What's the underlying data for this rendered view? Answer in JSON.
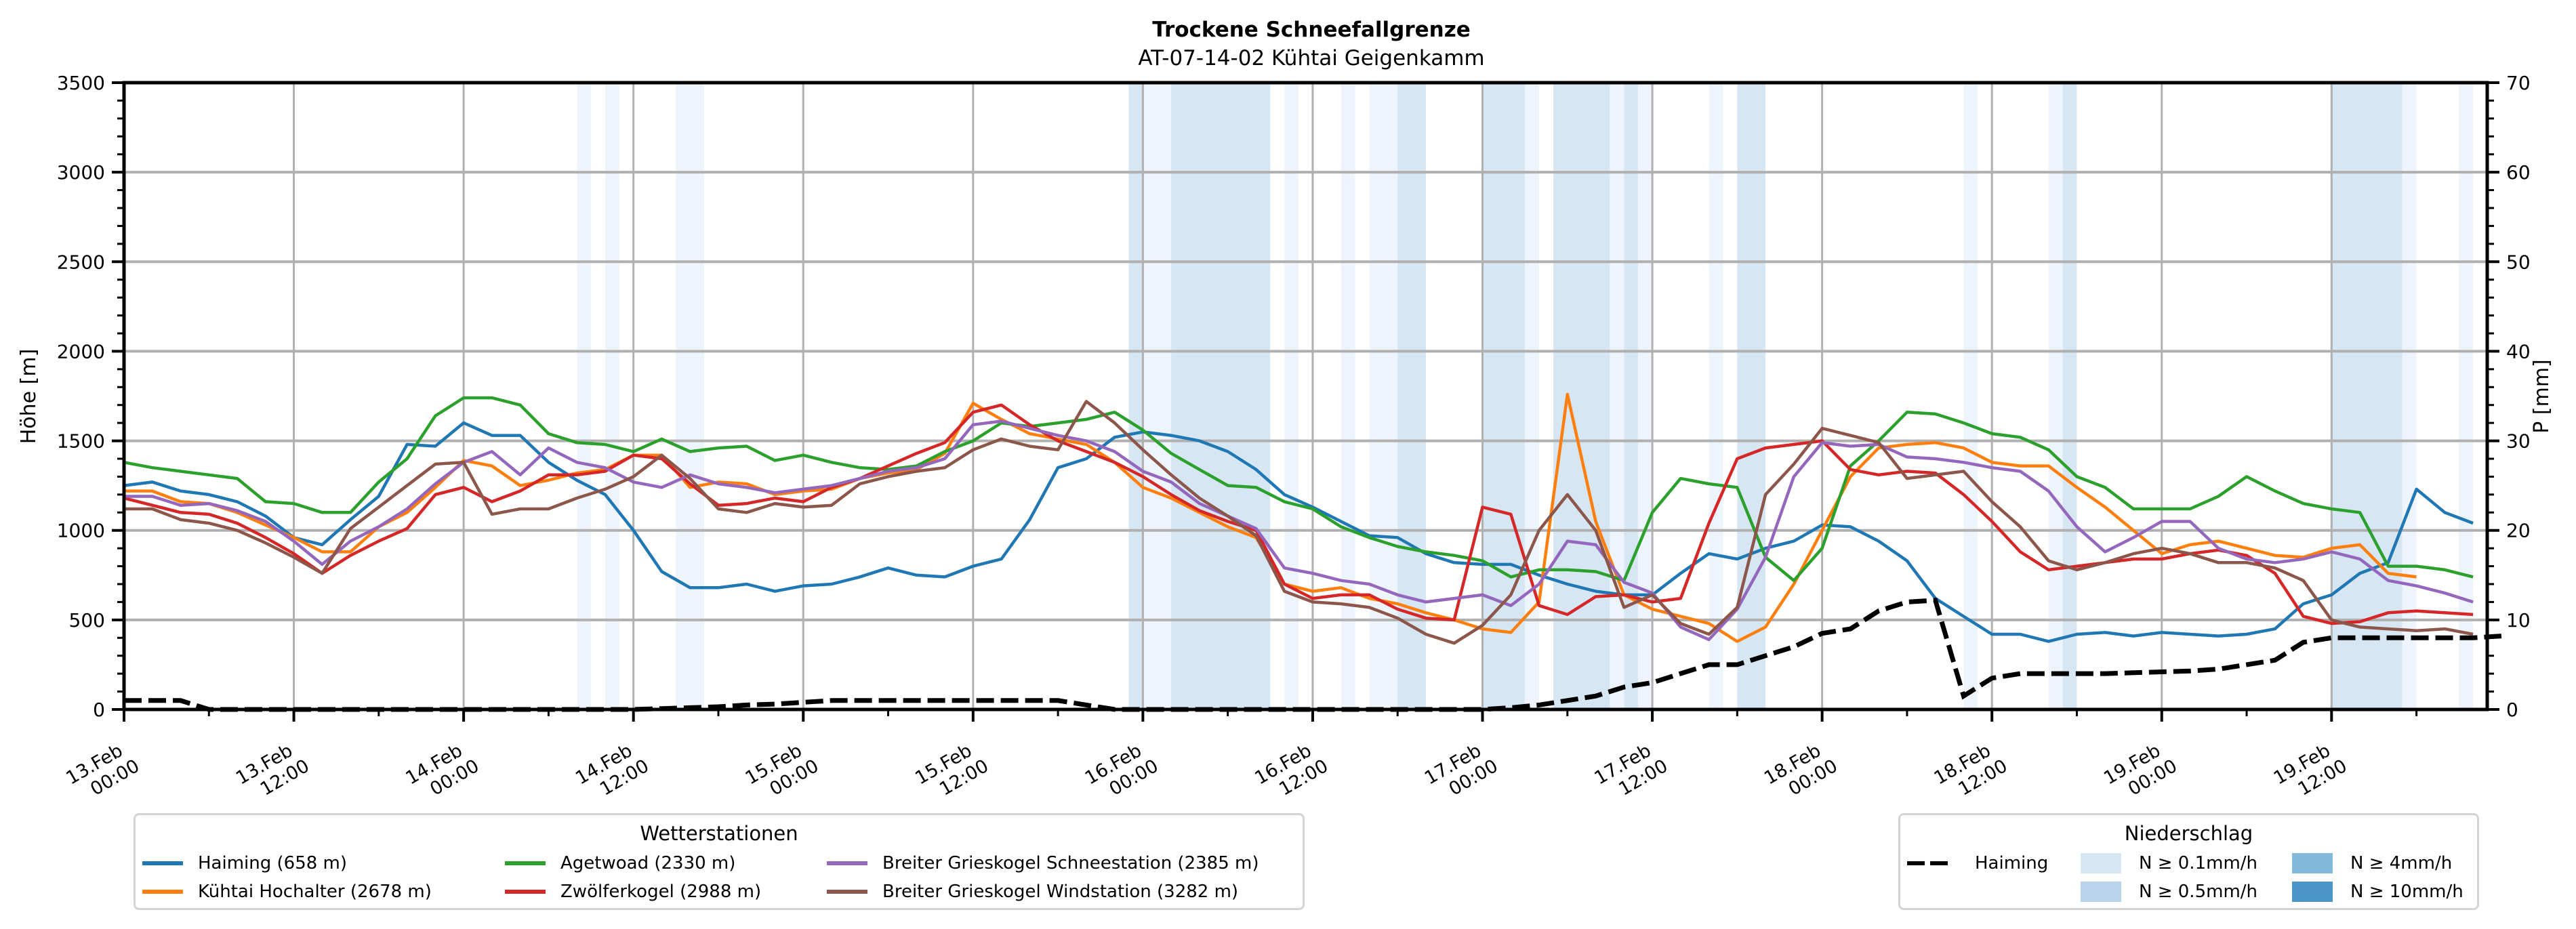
{
  "chart_data": {
    "type": "line",
    "title": "Trockene Schneefallgrenze",
    "subtitle": "AT-07-14-02 Kühtai Geigenkamm",
    "ylabel": "Höhe [m]",
    "ylabel_right": "P [mm]",
    "ylim": [
      0,
      3500
    ],
    "ylim_right": [
      0,
      70
    ],
    "yticks": [
      "0",
      "500",
      "1000",
      "1500",
      "2000",
      "2500",
      "3000",
      "3500"
    ],
    "yticks_right": [
      "0",
      "10",
      "20",
      "30",
      "40",
      "50",
      "60",
      "70"
    ],
    "x_unit": "hours since 13.Feb 00:00",
    "xlim": [
      0,
      167
    ],
    "xticks": [
      {
        "h": 0,
        "line1": "13.Feb",
        "line2": "00:00"
      },
      {
        "h": 12,
        "line1": "13.Feb",
        "line2": "12:00"
      },
      {
        "h": 24,
        "line1": "14.Feb",
        "line2": "00:00"
      },
      {
        "h": 36,
        "line1": "14.Feb",
        "line2": "12:00"
      },
      {
        "h": 48,
        "line1": "15.Feb",
        "line2": "00:00"
      },
      {
        "h": 60,
        "line1": "15.Feb",
        "line2": "12:00"
      },
      {
        "h": 72,
        "line1": "16.Feb",
        "line2": "00:00"
      },
      {
        "h": 84,
        "line1": "16.Feb",
        "line2": "12:00"
      },
      {
        "h": 96,
        "line1": "17.Feb",
        "line2": "00:00"
      },
      {
        "h": 108,
        "line1": "17.Feb",
        "line2": "12:00"
      },
      {
        "h": 120,
        "line1": "18.Feb",
        "line2": "00:00"
      },
      {
        "h": 132,
        "line1": "18.Feb",
        "line2": "12:00"
      },
      {
        "h": 144,
        "line1": "19.Feb",
        "line2": "00:00"
      },
      {
        "h": 156,
        "line1": "19.Feb",
        "line2": "12:00"
      }
    ],
    "grid": true,
    "x_step_hours": 2,
    "series": [
      {
        "name": "Haiming (658 m)",
        "color": "#1f77b4",
        "values": [
          1250,
          1270,
          1220,
          1200,
          1160,
          1080,
          960,
          920,
          1060,
          1190,
          1480,
          1470,
          1600,
          1530,
          1530,
          1380,
          1280,
          1200,
          1000,
          770,
          680,
          680,
          700,
          660,
          690,
          700,
          740,
          790,
          750,
          740,
          800,
          840,
          1060,
          1350,
          1400,
          1520,
          1550,
          1530,
          1500,
          1440,
          1340,
          1200,
          1130,
          1050,
          970,
          960,
          870,
          820,
          810,
          810,
          750,
          700,
          660,
          640,
          640,
          760,
          870,
          840,
          900,
          940,
          1030,
          1020,
          940,
          830,
          620,
          520,
          420,
          420,
          380,
          420,
          430,
          410,
          430,
          420,
          410,
          420,
          450,
          590,
          640,
          760,
          820,
          1230,
          1100,
          1040
        ]
      },
      {
        "name": "Kühtai Hochalter (2678 m)",
        "color": "#ff7f0e",
        "values": [
          1220,
          1220,
          1160,
          1150,
          1100,
          1030,
          960,
          880,
          880,
          1020,
          1100,
          1240,
          1390,
          1360,
          1250,
          1280,
          1320,
          1340,
          1420,
          1420,
          1240,
          1270,
          1260,
          1200,
          1220,
          1230,
          1290,
          1320,
          1340,
          1430,
          1710,
          1620,
          1540,
          1510,
          1480,
          1380,
          1240,
          1180,
          1100,
          1020,
          960,
          700,
          660,
          680,
          620,
          590,
          540,
          500,
          450,
          430,
          600,
          1760,
          1050,
          640,
          560,
          520,
          480,
          380,
          460,
          700,
          1000,
          1300,
          1460,
          1480,
          1490,
          1460,
          1380,
          1360,
          1360,
          1240,
          1130,
          1000,
          870,
          920,
          940,
          900,
          860,
          850,
          900,
          920,
          760,
          740
        ]
      },
      {
        "name": "Agetwoad (2330 m)",
        "color": "#2ca02c",
        "values": [
          1380,
          1350,
          1330,
          1310,
          1290,
          1160,
          1150,
          1100,
          1100,
          1270,
          1400,
          1640,
          1740,
          1740,
          1700,
          1540,
          1490,
          1480,
          1440,
          1510,
          1440,
          1460,
          1470,
          1390,
          1420,
          1380,
          1350,
          1340,
          1360,
          1440,
          1500,
          1600,
          1580,
          1600,
          1620,
          1660,
          1560,
          1430,
          1340,
          1250,
          1240,
          1160,
          1120,
          1020,
          960,
          910,
          880,
          860,
          830,
          740,
          780,
          780,
          770,
          720,
          1100,
          1290,
          1260,
          1240,
          850,
          720,
          900,
          1360,
          1500,
          1660,
          1650,
          1600,
          1540,
          1520,
          1450,
          1300,
          1240,
          1120,
          1120,
          1120,
          1190,
          1300,
          1220,
          1150,
          1120,
          1100,
          800,
          800,
          780,
          740
        ]
      },
      {
        "name": "Zwölferkogel (2988 m)",
        "color": "#d62728",
        "values": [
          1180,
          1140,
          1100,
          1090,
          1040,
          960,
          870,
          760,
          860,
          940,
          1010,
          1200,
          1240,
          1160,
          1220,
          1310,
          1310,
          1330,
          1420,
          1400,
          1260,
          1140,
          1150,
          1180,
          1160,
          1240,
          1290,
          1360,
          1430,
          1490,
          1660,
          1700,
          1590,
          1500,
          1440,
          1380,
          1300,
          1200,
          1110,
          1050,
          1000,
          700,
          620,
          640,
          640,
          560,
          510,
          500,
          1130,
          1090,
          580,
          530,
          630,
          640,
          600,
          620,
          1040,
          1400,
          1460,
          1480,
          1500,
          1340,
          1310,
          1330,
          1320,
          1200,
          1050,
          880,
          780,
          800,
          820,
          840,
          840,
          870,
          890,
          860,
          760,
          520,
          480,
          490,
          540,
          550,
          540,
          530
        ]
      },
      {
        "name": "Breiter Grieskogel Schneestation (2385 m)",
        "color": "#9467bd",
        "values": [
          1190,
          1190,
          1140,
          1150,
          1110,
          1050,
          940,
          810,
          940,
          1020,
          1120,
          1260,
          1380,
          1440,
          1310,
          1460,
          1380,
          1350,
          1270,
          1240,
          1310,
          1260,
          1240,
          1210,
          1230,
          1250,
          1290,
          1330,
          1350,
          1400,
          1590,
          1610,
          1570,
          1530,
          1500,
          1440,
          1330,
          1270,
          1150,
          1080,
          1010,
          790,
          760,
          720,
          700,
          640,
          600,
          620,
          640,
          580,
          700,
          940,
          920,
          710,
          650,
          460,
          390,
          560,
          850,
          1300,
          1490,
          1470,
          1480,
          1410,
          1400,
          1380,
          1350,
          1330,
          1220,
          1020,
          880,
          960,
          1050,
          1050,
          900,
          840,
          820,
          840,
          880,
          840,
          720,
          690,
          650,
          600
        ]
      },
      {
        "name": "Breiter Grieskogel Windstation (3282 m)",
        "color": "#8c564b",
        "values": [
          1120,
          1120,
          1060,
          1040,
          1000,
          930,
          850,
          760,
          1010,
          1130,
          1250,
          1370,
          1380,
          1090,
          1120,
          1120,
          1180,
          1230,
          1300,
          1420,
          1290,
          1120,
          1100,
          1150,
          1130,
          1140,
          1260,
          1300,
          1330,
          1350,
          1450,
          1510,
          1470,
          1450,
          1720,
          1600,
          1450,
          1310,
          1180,
          1080,
          970,
          660,
          600,
          590,
          570,
          510,
          420,
          370,
          470,
          640,
          1000,
          1200,
          1000,
          570,
          640,
          480,
          420,
          570,
          1200,
          1370,
          1570,
          1530,
          1490,
          1290,
          1310,
          1330,
          1160,
          1020,
          830,
          780,
          820,
          870,
          900,
          870,
          820,
          820,
          790,
          720,
          500,
          460,
          450,
          440,
          450,
          420
        ]
      }
    ],
    "precip_line": {
      "name": "Haiming",
      "unit": "mm",
      "axis": "right",
      "values": [
        1,
        1,
        1,
        0,
        0,
        0,
        0,
        0,
        0,
        0,
        0,
        0,
        0,
        0,
        0,
        0,
        0,
        0,
        0,
        0.1,
        0.2,
        0.3,
        0.5,
        0.6,
        0.8,
        1,
        1,
        1,
        1,
        1,
        1,
        1,
        1,
        1,
        0.5,
        0,
        0,
        0,
        0,
        0,
        0,
        0,
        0,
        0,
        0,
        0,
        0,
        0,
        0,
        0.2,
        0.5,
        1,
        1.5,
        2.5,
        3,
        4,
        5,
        5,
        6,
        7,
        8.5,
        9,
        11,
        12,
        12.2,
        1.5,
        3.5,
        4,
        4,
        4,
        4,
        4.1,
        4.2,
        4.3,
        4.5,
        5,
        5.5,
        7.5,
        8,
        8,
        8,
        8,
        8,
        8,
        8.2
      ]
    },
    "legend_stations": {
      "title": "Wetterstationen",
      "placement": "bottom-left"
    },
    "legend_precip": {
      "title": "Niederschlag",
      "placement": "bottom-right",
      "line_label": "Haiming",
      "bands": [
        {
          "label": "N ≥ 0.1mm/h",
          "color": "#eef4fb"
        },
        {
          "label": "N ≥ 0.5mm/h",
          "color": "#b9d4ea"
        },
        {
          "label": "N ≥ 4mm/h",
          "color": "#82b8da"
        },
        {
          "label": "N ≥ 10mm/h",
          "color": "#4a96c8"
        }
      ],
      "band_display_color_medium": "#d6e6f3"
    },
    "precip_bands": [
      {
        "from": 32.0,
        "to": 33.0,
        "level": "light"
      },
      {
        "from": 34.0,
        "to": 35.0,
        "level": "light"
      },
      {
        "from": 39.0,
        "to": 41.0,
        "level": "light"
      },
      {
        "from": 71.0,
        "to": 72.0,
        "level": "medium"
      },
      {
        "from": 72.0,
        "to": 74.0,
        "level": "light"
      },
      {
        "from": 74.0,
        "to": 81.0,
        "level": "medium"
      },
      {
        "from": 82.0,
        "to": 83.0,
        "level": "light"
      },
      {
        "from": 86.0,
        "to": 87.0,
        "level": "light"
      },
      {
        "from": 88.0,
        "to": 90.0,
        "level": "light"
      },
      {
        "from": 90.0,
        "to": 92.0,
        "level": "medium"
      },
      {
        "from": 96.0,
        "to": 99.0,
        "level": "medium"
      },
      {
        "from": 99.0,
        "to": 100.0,
        "level": "light"
      },
      {
        "from": 101.0,
        "to": 105.0,
        "level": "medium"
      },
      {
        "from": 105.0,
        "to": 106.0,
        "level": "light"
      },
      {
        "from": 106.0,
        "to": 107.0,
        "level": "medium"
      },
      {
        "from": 107.0,
        "to": 108.0,
        "level": "light"
      },
      {
        "from": 112.0,
        "to": 113.0,
        "level": "light"
      },
      {
        "from": 114.0,
        "to": 116.0,
        "level": "medium"
      },
      {
        "from": 130.0,
        "to": 131.0,
        "level": "light"
      },
      {
        "from": 136.0,
        "to": 137.0,
        "level": "light"
      },
      {
        "from": 137.0,
        "to": 138.0,
        "level": "medium"
      },
      {
        "from": 156.0,
        "to": 161.0,
        "level": "medium"
      },
      {
        "from": 161.0,
        "to": 162.0,
        "level": "light"
      },
      {
        "from": 165.0,
        "to": 166.0,
        "level": "light"
      }
    ]
  }
}
